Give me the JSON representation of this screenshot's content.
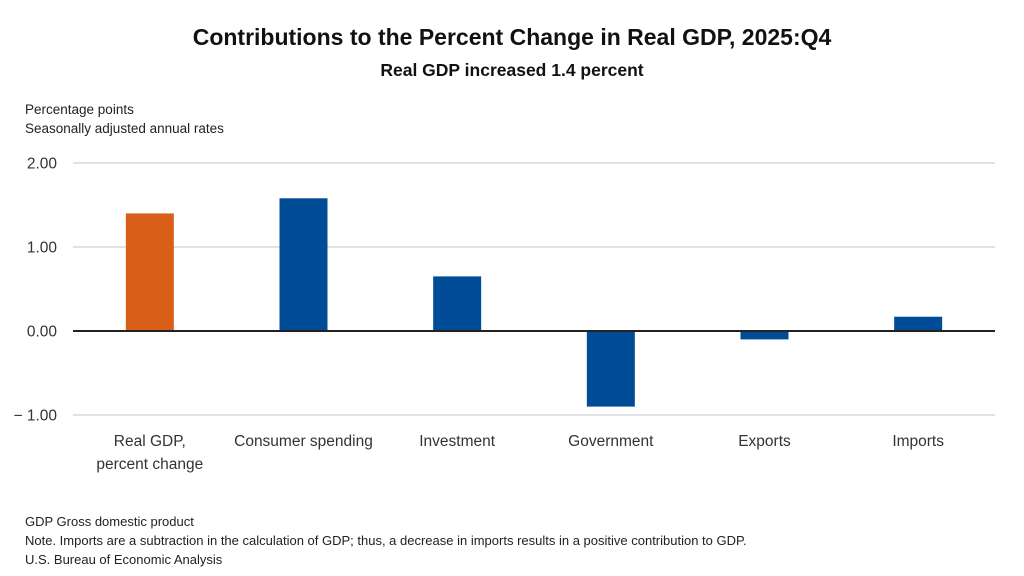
{
  "chart_data": {
    "type": "bar",
    "title": "Contributions to the Percent Change in Real GDP, 2025:Q4",
    "subtitle": "Real GDP increased 1.4 percent",
    "ylabel_lines": [
      "Percentage points",
      "Seasonally adjusted annual rates"
    ],
    "xlabel": "",
    "categories": [
      [
        "Real GDP,",
        "percent change"
      ],
      [
        "Consumer spending"
      ],
      [
        "Investment"
      ],
      [
        "Government"
      ],
      [
        "Exports"
      ],
      [
        "Imports"
      ]
    ],
    "values": [
      1.4,
      1.58,
      0.65,
      -0.9,
      -0.1,
      0.17
    ],
    "bar_colors": [
      "#D95F18",
      "#004C97",
      "#004C97",
      "#004C97",
      "#004C97",
      "#004C97"
    ],
    "ylim": [
      -1.0,
      2.0
    ],
    "yticks": [
      2.0,
      1.0,
      0.0,
      -1.0
    ],
    "ytick_labels": [
      "2.00",
      "1.00",
      "0.00",
      "− 1.00"
    ],
    "grid": true,
    "gridline_color": "#D9D9D9",
    "zero_line_color": "#222222",
    "legend": "none"
  },
  "footer": {
    "abbrev": "GDP Gross domestic product",
    "note": "Note. Imports are a subtraction in the calculation of GDP; thus, a decrease in imports results in a positive contribution to GDP.",
    "source": "U.S. Bureau of Economic Analysis"
  }
}
